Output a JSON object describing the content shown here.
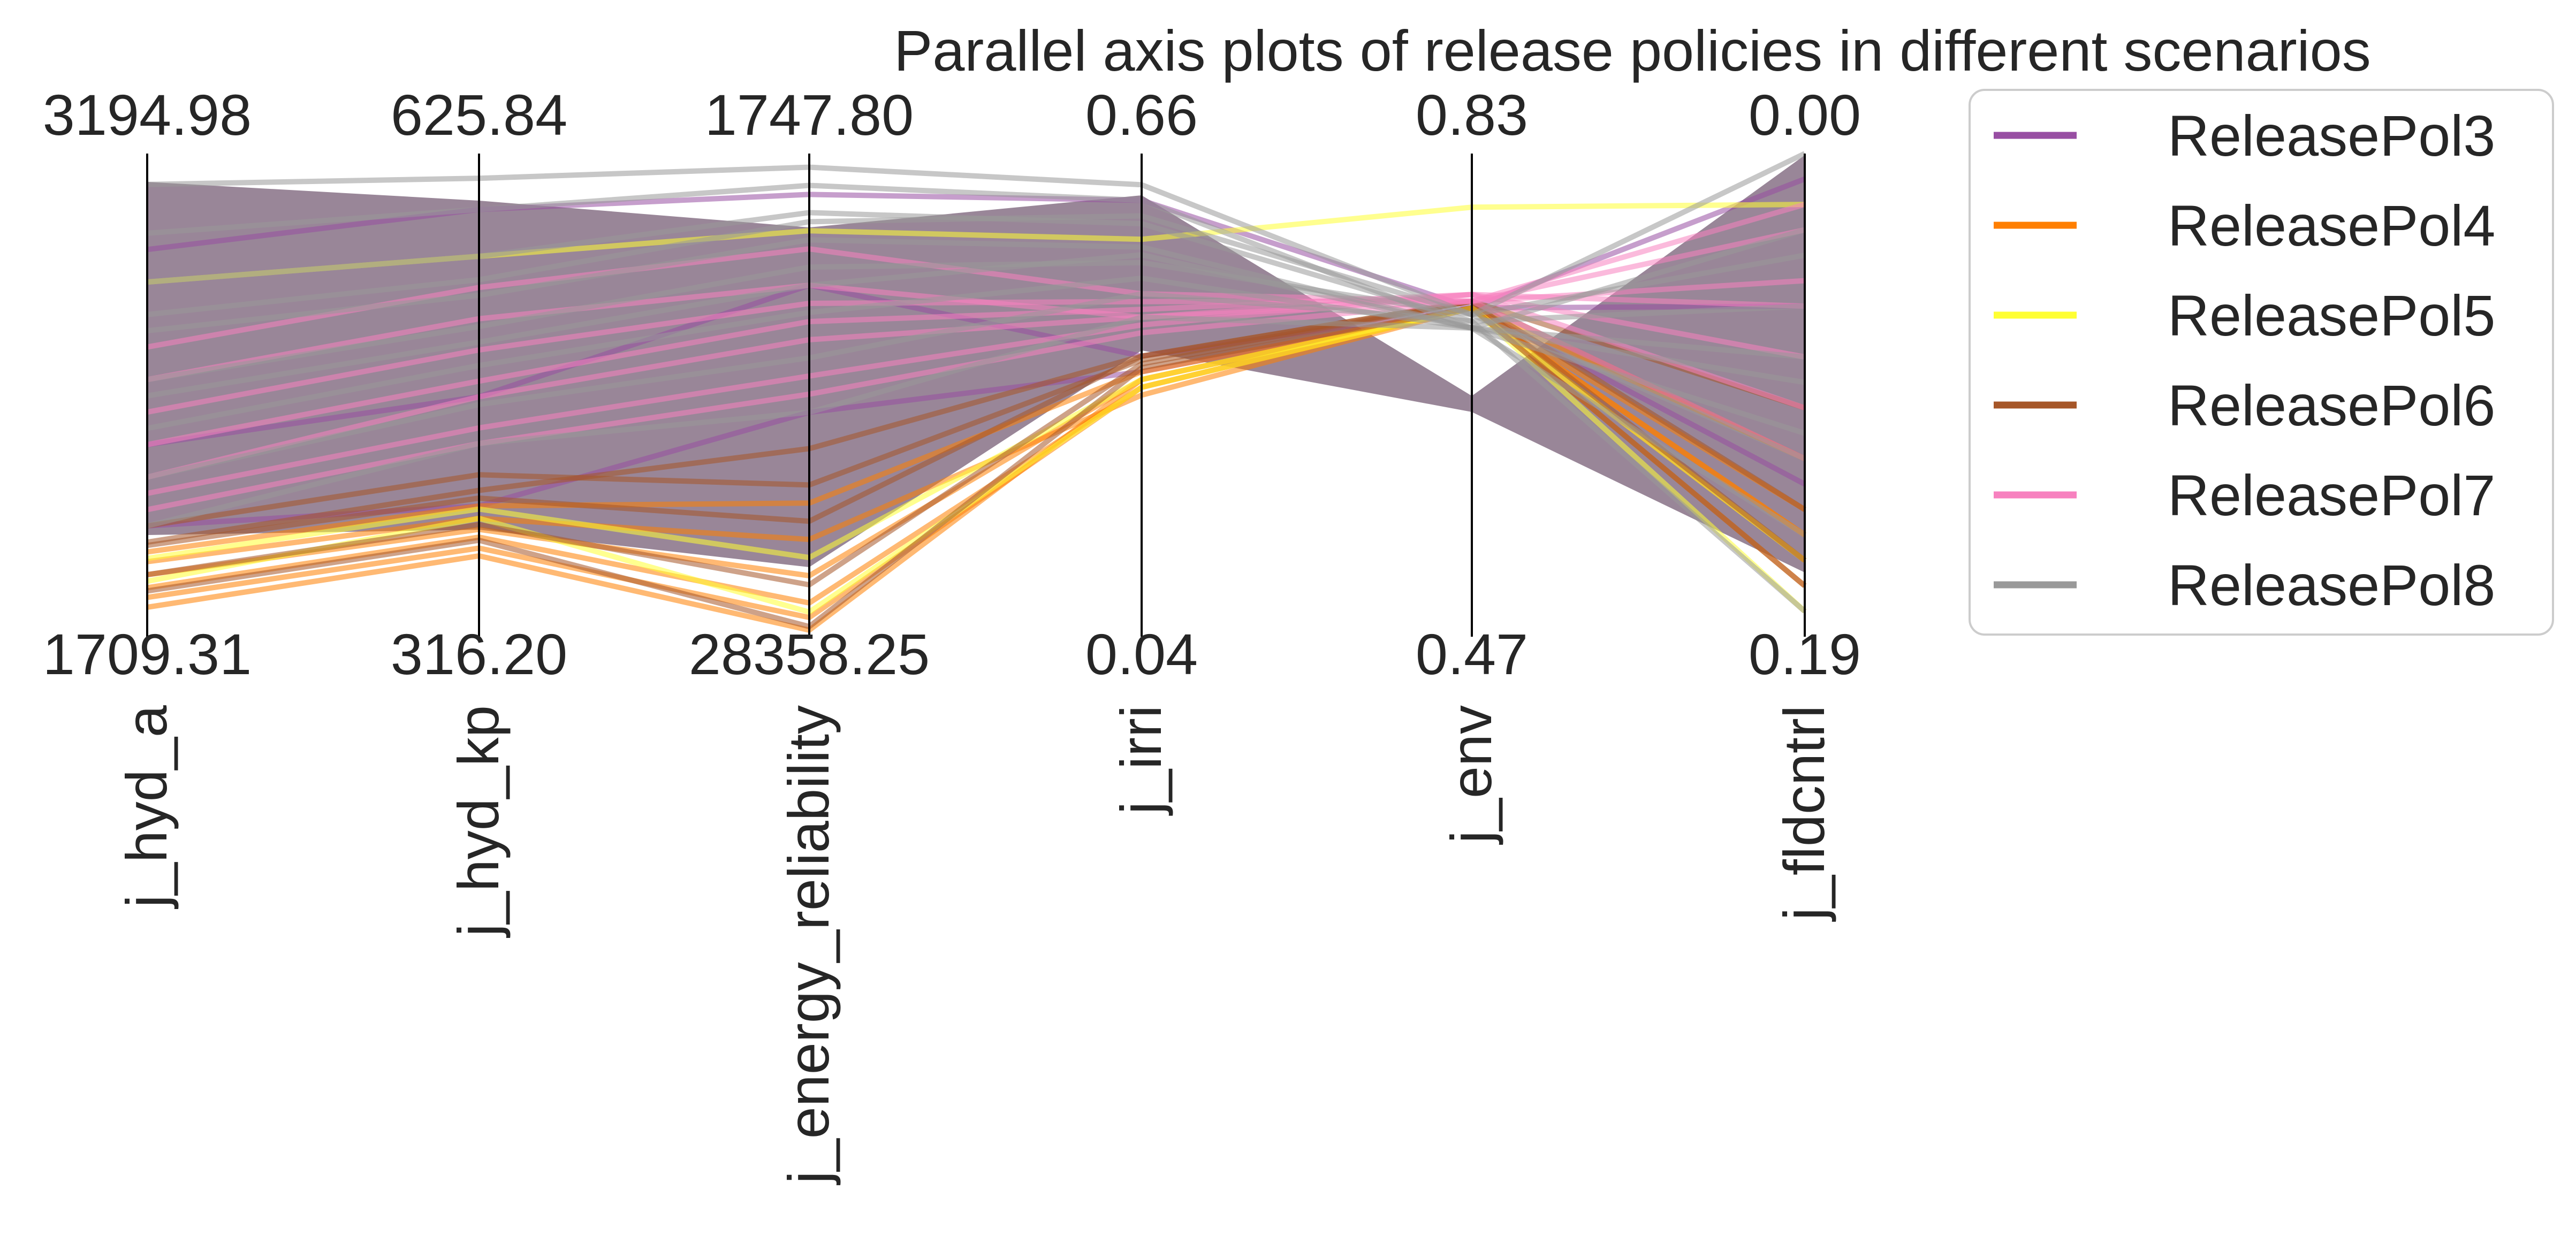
{
  "chart_data": {
    "type": "parallel_coordinates",
    "title": "Parallel axis plots of release policies in different scenarios",
    "axes": [
      {
        "label": "j_hyd_a",
        "top": "3194.98",
        "bottom": "1709.31",
        "top_value": 3194.98,
        "bottom_value": 1709.31
      },
      {
        "label": "j_hyd_kp",
        "top": "625.84",
        "bottom": "316.20",
        "top_value": 625.84,
        "bottom_value": 316.2
      },
      {
        "label": "j_energy_reliability",
        "top": "1747.80",
        "bottom": "28358.25",
        "top_value": 1747.8,
        "bottom_value": 28358.25
      },
      {
        "label": "j_irri",
        "top": "0.66",
        "bottom": "0.04",
        "top_value": 0.66,
        "bottom_value": 0.04
      },
      {
        "label": "j_env",
        "top": "0.83",
        "bottom": "0.47",
        "top_value": 0.83,
        "bottom_value": 0.47
      },
      {
        "label": "j_fldcntrl",
        "top": "0.00",
        "bottom": "0.19",
        "top_value": 0.0,
        "bottom_value": 0.19
      }
    ],
    "series": [
      {
        "name": "ReleasePol3",
        "color": "#984ea3",
        "lines": [
          [
            2900,
            590,
            4000,
            0.6,
            0.715,
            0.01
          ],
          [
            2300,
            470,
            9000,
            0.4,
            0.715,
            0.06
          ],
          [
            2050,
            400,
            16000,
            0.38,
            0.715,
            0.13
          ]
        ]
      },
      {
        "name": "ReleasePol4",
        "color": "#ff7f00",
        "lines": [
          [
            1970,
            400,
            21000,
            0.38,
            0.715,
            0.15
          ],
          [
            1900,
            385,
            25000,
            0.37,
            0.715,
            0.14
          ],
          [
            1860,
            380,
            26500,
            0.36,
            0.715,
            0.16
          ],
          [
            1830,
            373,
            27300,
            0.36,
            0.715,
            0.15
          ],
          [
            1800,
            368,
            28000,
            0.37,
            0.715,
            0.17
          ],
          [
            1940,
            392,
            23000,
            0.35,
            0.715,
            0.12
          ]
        ]
      },
      {
        "name": "ReleasePol5",
        "color": "#ffff33",
        "lines": [
          [
            1880,
            392,
            27000,
            0.36,
            0.715,
            0.18
          ],
          [
            1950,
            398,
            24000,
            0.37,
            0.715,
            0.16
          ],
          [
            2800,
            560,
            6000,
            0.55,
            0.79,
            0.02
          ]
        ]
      },
      {
        "name": "ReleasePol6",
        "color": "#a65628",
        "lines": [
          [
            1990,
            405,
            22000,
            0.4,
            0.72,
            0.14
          ],
          [
            1900,
            388,
            25500,
            0.39,
            0.72,
            0.16
          ],
          [
            2050,
            420,
            20000,
            0.395,
            0.72,
            0.12
          ],
          [
            1850,
            378,
            27800,
            0.385,
            0.715,
            0.17
          ],
          [
            2000,
            410,
            18000,
            0.4,
            0.72,
            0.1
          ]
        ]
      },
      {
        "name": "ReleasePol7",
        "color": "#f781bf",
        "lines": [
          [
            2200,
            470,
            12000,
            0.45,
            0.72,
            0.02
          ],
          [
            2400,
            500,
            10000,
            0.47,
            0.72,
            0.05
          ],
          [
            2150,
            450,
            14000,
            0.44,
            0.725,
            0.08
          ],
          [
            2300,
            480,
            11000,
            0.46,
            0.725,
            0.1
          ],
          [
            2600,
            540,
            7000,
            0.48,
            0.72,
            0.03
          ],
          [
            2100,
            440,
            15000,
            0.43,
            0.72,
            0.12
          ],
          [
            2500,
            520,
            9000,
            0.45,
            0.725,
            0.06
          ]
        ]
      },
      {
        "name": "ReleasePol8",
        "color": "#999999",
        "lines": [
          [
            3100,
            610,
            2500,
            0.62,
            0.71,
            0.0
          ],
          [
            2950,
            590,
            3500,
            0.6,
            0.7,
            0.03
          ],
          [
            2800,
            560,
            5000,
            0.57,
            0.705,
            0.06
          ],
          [
            2650,
            535,
            6500,
            0.54,
            0.7,
            0.09
          ],
          [
            2500,
            515,
            8000,
            0.52,
            0.71,
            0.12
          ],
          [
            2350,
            490,
            10500,
            0.5,
            0.7,
            0.15
          ],
          [
            2200,
            465,
            13000,
            0.48,
            0.705,
            0.18
          ],
          [
            2050,
            440,
            16000,
            0.45,
            0.7,
            0.11
          ],
          [
            2700,
            545,
            5500,
            0.58,
            0.71,
            0.04
          ],
          [
            2450,
            505,
            9000,
            0.53,
            0.7,
            0.08
          ]
        ]
      }
    ],
    "legend": "top-right"
  }
}
